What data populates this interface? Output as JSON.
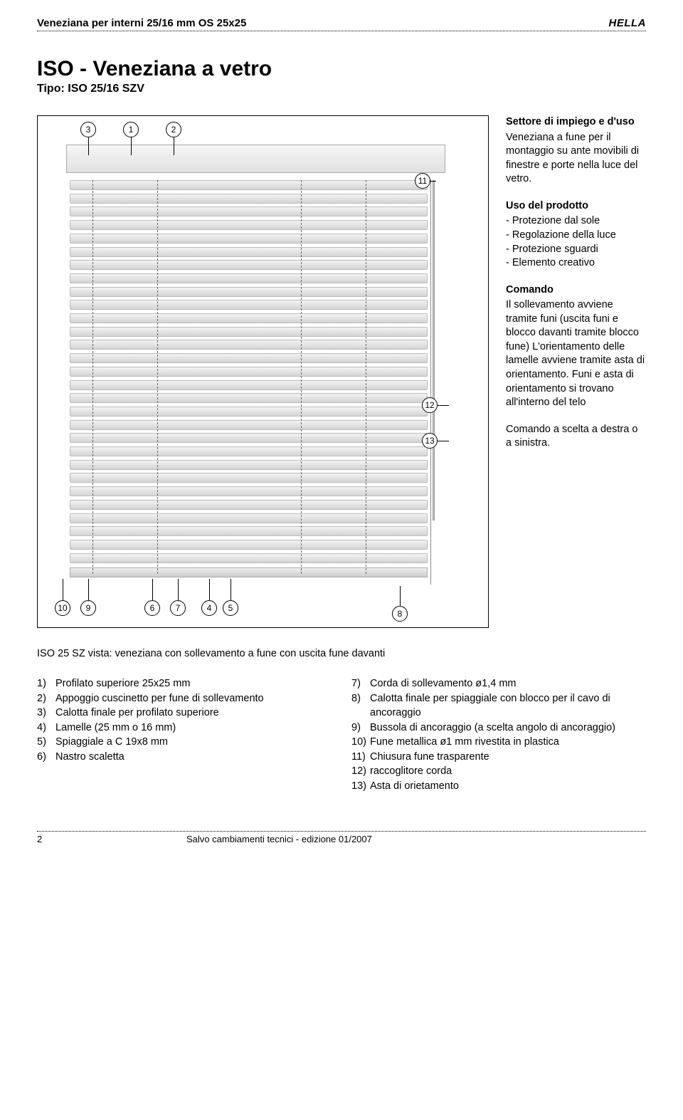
{
  "header": {
    "left": "Veneziana per interni 25/16 mm OS 25x25",
    "brand": "HELLA"
  },
  "title": {
    "main": "ISO - Veneziana a vetro",
    "sub": "Tipo: ISO 25/16 SZV"
  },
  "figure": {
    "callouts_top": [
      "3",
      "1",
      "2"
    ],
    "callouts_right_upper": "11",
    "callouts_right_mid": "12",
    "callouts_right_lower": "13",
    "callouts_bottom_left": [
      "10",
      "9",
      "6",
      "7",
      "4",
      "5"
    ],
    "callouts_bottom_right": "8",
    "slat_count": 29,
    "ladder_positions_pct": [
      7,
      24,
      62,
      79
    ],
    "colors": {
      "border": "#000000",
      "slat_light": "#f2f2f2",
      "slat_dark": "#d4d4d4",
      "rail_light": "#f6f6f6",
      "rail_dark": "#e1e1e1"
    }
  },
  "sections": {
    "s1": {
      "title": "Settore di impiego e d'uso",
      "body": "Veneziana a fune per il montaggio su ante movibili di finestre e porte nella luce del vetro."
    },
    "s2": {
      "title": "Uso del prodotto",
      "items": [
        "Protezione dal sole",
        "Regolazione della luce",
        "Protezione sguardi",
        "Elemento creativo"
      ]
    },
    "s3": {
      "title": "Comando",
      "body1": "Il sollevamento avviene tramite funi (uscita funi e blocco davanti tramite blocco fune) L'orientamento delle lamelle avviene tramite asta di orientamento. Funi e asta di orientamento si trovano all'interno del telo",
      "body2": "Comando a scelta a destra o a sinistra."
    }
  },
  "caption": "ISO 25 SZ vista: veneziana con sollevamento a fune con uscita fune davanti",
  "legend_left": [
    {
      "n": "1)",
      "t": "Profilato superiore 25x25 mm"
    },
    {
      "n": "2)",
      "t": "Appoggio cuscinetto per fune di sollevamento"
    },
    {
      "n": "3)",
      "t": "Calotta finale per profilato superiore"
    },
    {
      "n": "4)",
      "t": "Lamelle (25 mm  o 16 mm)"
    },
    {
      "n": "5)",
      "t": "Spiaggiale a C 19x8 mm"
    },
    {
      "n": "6)",
      "t": "Nastro scaletta"
    }
  ],
  "legend_right": [
    {
      "n": "7)",
      "t": "Corda di sollevamento ø1,4 mm"
    },
    {
      "n": "8)",
      "t": "Calotta finale per spiaggiale con blocco per il cavo di ancoraggio"
    },
    {
      "n": "9)",
      "t": "Bussola di ancoraggio (a scelta angolo di ancoraggio)"
    },
    {
      "n": "10)",
      "t": "Fune metallica ø1 mm rivestita in plastica"
    },
    {
      "n": "11)",
      "t": "Chiusura fune trasparente"
    },
    {
      "n": "12)",
      "t": "raccoglitore corda"
    },
    {
      "n": "13)",
      "t": "Asta di orietamento"
    }
  ],
  "footer": {
    "page": "2",
    "text": "Salvo cambiamenti tecnici - edizione 01/2007"
  }
}
